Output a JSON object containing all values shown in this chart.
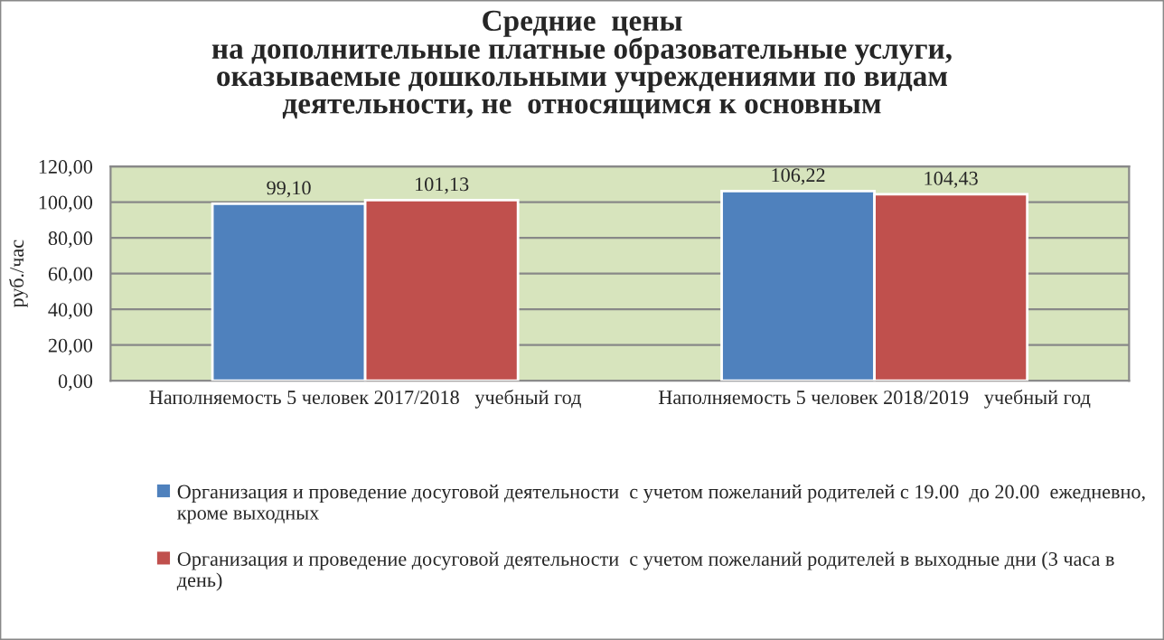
{
  "chart_data": {
    "type": "bar",
    "title": "Средние  цены\nна дополнительные платные образовательные услуги,\nоказываемые дошкольными учреждениями по видам\nдеятельности, не  относящимся к основным",
    "ylabel": "руб./час",
    "categories": [
      "Наполняемость 5 человек 2017/2018   учебный год",
      "Наполняемость 5 человек 2018/2019   учебный год"
    ],
    "series": [
      {
        "name": "Организация и проведение досуговой деятельности  с учетом пожеланий родителей с 19.00  до 20.00  ежедневно, кроме выходных",
        "color": "#4f81bd",
        "values": [
          99.1,
          106.22
        ],
        "value_labels": [
          "99,10",
          "106,22"
        ]
      },
      {
        "name": "Организация и проведение досуговой деятельности  с учетом пожеланий родителей в выходные дни (3 часа в день)",
        "color": "#c0504d",
        "values": [
          101.13,
          104.43
        ],
        "value_labels": [
          "101,13",
          "104,43"
        ]
      }
    ],
    "ylim": [
      0,
      120
    ],
    "yticks": [
      {
        "value": 0,
        "label": "0,00"
      },
      {
        "value": 20,
        "label": "20,00"
      },
      {
        "value": 40,
        "label": "40,00"
      },
      {
        "value": 60,
        "label": "60,00"
      },
      {
        "value": 80,
        "label": "80,00"
      },
      {
        "value": 100,
        "label": "100,00"
      },
      {
        "value": 120,
        "label": "120,00"
      }
    ],
    "grid": "y",
    "legend": "bottom"
  }
}
